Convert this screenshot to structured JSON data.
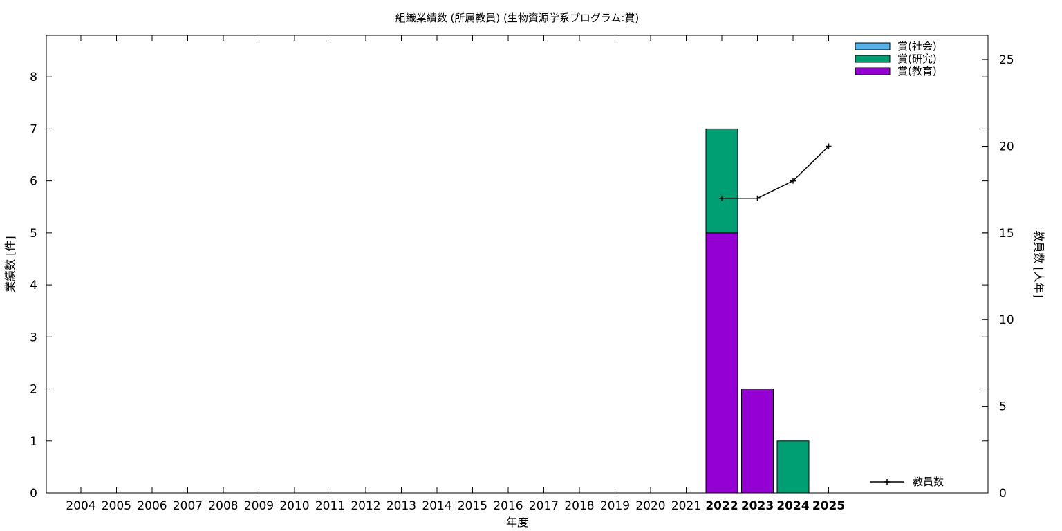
{
  "chart_data": {
    "type": "bar",
    "stacked": true,
    "title": "組織業績数 (所属教員) (生物資源学系プログラム:賞)",
    "xlabel": "年度",
    "ylabel": "業績数 [件]",
    "y2label": "教員数 [人年]",
    "ylim": [
      0,
      8.8
    ],
    "y2lim": [
      0,
      26.4
    ],
    "yticks": [
      0,
      1,
      2,
      3,
      4,
      5,
      6,
      7,
      8
    ],
    "y2ticks": [
      0,
      5,
      10,
      15,
      20,
      25
    ],
    "grid": false,
    "legend_position": "top-right",
    "categories": [
      "2004",
      "2005",
      "2006",
      "2007",
      "2008",
      "2009",
      "2010",
      "2011",
      "2012",
      "2013",
      "2014",
      "2015",
      "2016",
      "2017",
      "2018",
      "2019",
      "2020",
      "2021",
      "2022",
      "2023",
      "2024",
      "2025"
    ],
    "highlighted_categories": [
      "2022",
      "2023",
      "2024",
      "2025"
    ],
    "series": [
      {
        "name": "賞(教育)",
        "color": "#9400d3",
        "values": [
          0,
          0,
          0,
          0,
          0,
          0,
          0,
          0,
          0,
          0,
          0,
          0,
          0,
          0,
          0,
          0,
          0,
          0,
          5,
          2,
          0,
          0
        ]
      },
      {
        "name": "賞(研究)",
        "color": "#009e73",
        "values": [
          0,
          0,
          0,
          0,
          0,
          0,
          0,
          0,
          0,
          0,
          0,
          0,
          0,
          0,
          0,
          0,
          0,
          0,
          2,
          0,
          1,
          0
        ]
      },
      {
        "name": "賞(社会)",
        "color": "#56b4e9",
        "values": [
          0,
          0,
          0,
          0,
          0,
          0,
          0,
          0,
          0,
          0,
          0,
          0,
          0,
          0,
          0,
          0,
          0,
          0,
          0,
          0,
          0,
          0
        ]
      }
    ],
    "legend_order": [
      "賞(社会)",
      "賞(研究)",
      "賞(教育)"
    ],
    "line_series": {
      "name": "教員数",
      "axis": "y2",
      "color": "#000000",
      "x": [
        "2022",
        "2023",
        "2024",
        "2025"
      ],
      "values": [
        17,
        17,
        18,
        20
      ],
      "legend_position": "bottom-right"
    }
  }
}
